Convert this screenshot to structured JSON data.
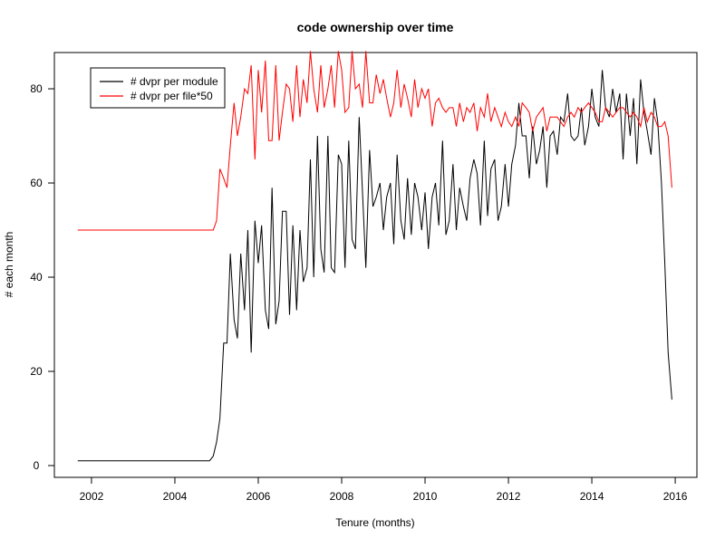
{
  "chart_data": {
    "type": "line",
    "title": "code ownership over time",
    "xlabel": "Tenure (months)",
    "ylabel": "# each month",
    "x": [
      2001.67,
      2004.83,
      2004.92,
      2005.0,
      2005.08,
      2005.17,
      2005.25,
      2005.33,
      2005.42,
      2005.5,
      2005.58,
      2005.67,
      2005.75,
      2005.83,
      2005.92,
      2006.0,
      2006.08,
      2006.17,
      2006.25,
      2006.33,
      2006.42,
      2006.5,
      2006.58,
      2006.67,
      2006.75,
      2006.83,
      2006.92,
      2007.0,
      2007.08,
      2007.17,
      2007.25,
      2007.33,
      2007.42,
      2007.5,
      2007.58,
      2007.67,
      2007.75,
      2007.83,
      2007.92,
      2008.0,
      2008.08,
      2008.17,
      2008.25,
      2008.33,
      2008.42,
      2008.5,
      2008.58,
      2008.67,
      2008.75,
      2008.83,
      2008.92,
      2009.0,
      2009.08,
      2009.17,
      2009.25,
      2009.33,
      2009.42,
      2009.5,
      2009.58,
      2009.67,
      2009.75,
      2009.83,
      2009.92,
      2010.0,
      2010.08,
      2010.17,
      2010.25,
      2010.33,
      2010.42,
      2010.5,
      2010.58,
      2010.67,
      2010.75,
      2010.83,
      2010.92,
      2011.0,
      2011.08,
      2011.17,
      2011.25,
      2011.33,
      2011.42,
      2011.5,
      2011.58,
      2011.67,
      2011.75,
      2011.83,
      2011.92,
      2012.0,
      2012.08,
      2012.17,
      2012.25,
      2012.33,
      2012.42,
      2012.5,
      2012.58,
      2012.67,
      2012.75,
      2012.83,
      2012.92,
      2013.0,
      2013.08,
      2013.17,
      2013.25,
      2013.33,
      2013.42,
      2013.5,
      2013.58,
      2013.67,
      2013.75,
      2013.83,
      2013.92,
      2014.0,
      2014.08,
      2014.17,
      2014.25,
      2014.33,
      2014.42,
      2014.5,
      2014.58,
      2014.67,
      2014.75,
      2014.83,
      2014.92,
      2015.0,
      2015.08,
      2015.17,
      2015.25,
      2015.33,
      2015.42,
      2015.5,
      2015.58,
      2015.67,
      2015.75,
      2015.83,
      2015.92
    ],
    "series": [
      {
        "name": "# dvpr per module",
        "color": "#000000",
        "values": [
          1,
          1,
          2,
          5,
          10,
          26,
          26,
          45,
          31,
          27,
          45,
          33,
          50,
          24,
          52,
          43,
          51,
          33,
          29,
          59,
          30,
          35,
          54,
          54,
          32,
          51,
          33,
          50,
          39,
          42,
          65,
          40,
          70,
          46,
          41,
          70,
          42,
          41,
          66,
          64,
          42,
          69,
          48,
          46,
          74,
          58,
          42,
          67,
          55,
          57,
          60,
          50,
          57,
          60,
          47,
          66,
          52,
          48,
          61,
          49,
          60,
          57,
          50,
          58,
          46,
          57,
          60,
          51,
          69,
          49,
          52,
          64,
          50,
          59,
          55,
          52,
          61,
          65,
          62,
          51,
          69,
          53,
          63,
          65,
          52,
          55,
          64,
          55,
          64,
          68,
          77,
          70,
          70,
          61,
          72,
          64,
          67,
          72,
          59,
          70,
          71,
          66,
          74,
          73,
          79,
          70,
          69,
          70,
          76,
          68,
          72,
          80,
          74,
          72,
          84,
          76,
          74,
          80,
          75,
          79,
          65,
          79,
          70,
          78,
          64,
          82,
          75,
          71,
          66,
          78,
          73,
          60,
          43,
          24,
          14
        ]
      },
      {
        "name": "# dvpr per file*50",
        "color": "#ff0000",
        "values": [
          50,
          50,
          50,
          52,
          63,
          61,
          59,
          68,
          77,
          70,
          74,
          80,
          79,
          85,
          65,
          84,
          75,
          86,
          69,
          69,
          85,
          69,
          75,
          81,
          80,
          73,
          85,
          74,
          82,
          77,
          88,
          80,
          75,
          85,
          76,
          80,
          85,
          76,
          88,
          84,
          75,
          76,
          88,
          80,
          81,
          76,
          88,
          77,
          77,
          83,
          79,
          82,
          78,
          74,
          77,
          84,
          76,
          81,
          78,
          74,
          82,
          76,
          80,
          78,
          80,
          72,
          77,
          78,
          76,
          75,
          76,
          76,
          72,
          77,
          73,
          76,
          75,
          77,
          71,
          76,
          74,
          79,
          73,
          76,
          74,
          72,
          75,
          73,
          72,
          74,
          72,
          77,
          76,
          75,
          71,
          74,
          75,
          76,
          71,
          74,
          74,
          74,
          73,
          72,
          74,
          75,
          74,
          76,
          75,
          76,
          77,
          76,
          75,
          73,
          73,
          76,
          75,
          74,
          75,
          76,
          76,
          75,
          74,
          75,
          74,
          72,
          76,
          73,
          75,
          74,
          72,
          72,
          73,
          70,
          59
        ]
      }
    ],
    "xlim": [
      2001.11,
      2016.52
    ],
    "xticks": [
      2002,
      2004,
      2006,
      2008,
      2010,
      2012,
      2014,
      2016
    ],
    "ylim": [
      -2.5,
      87.7
    ],
    "yticks": [
      0,
      20,
      40,
      60,
      80
    ],
    "legend": "top-left"
  }
}
